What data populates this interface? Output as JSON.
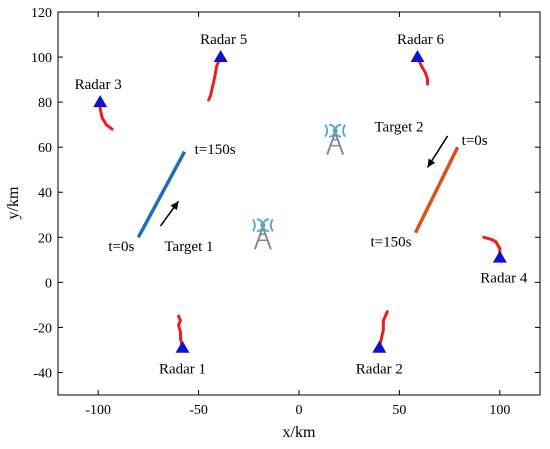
{
  "chart_data": {
    "type": "line",
    "xlabel": "x/km",
    "ylabel": "y/km",
    "xlim": [
      -120,
      120
    ],
    "ylim": [
      -50,
      120
    ],
    "xticks": [
      -100,
      -50,
      0,
      50,
      100
    ],
    "yticks": [
      -40,
      -20,
      0,
      20,
      40,
      60,
      80,
      100,
      120
    ],
    "grid": false,
    "colors": {
      "target1": "#1f6fb5",
      "target2": "#d95319",
      "radar_marker": "#1010d0",
      "radar_track": "#ee1c1c",
      "tower_icon": "#888888",
      "tower_waves": "#4aa8d8"
    },
    "targets": [
      {
        "label": "Target 1",
        "start_label": "t=0s",
        "end_label": "t=150s",
        "x": [
          -80,
          -57
        ],
        "y": [
          20,
          58
        ]
      },
      {
        "label": "Target 2",
        "start_label": "t=0s",
        "end_label": "t=150s",
        "x": [
          79,
          58
        ],
        "y": [
          60,
          22
        ]
      }
    ],
    "radars": [
      {
        "name": "Radar 1",
        "x": -58,
        "y": -29,
        "track": [
          [
            -58,
            -29
          ],
          [
            -59,
            -25
          ],
          [
            -59,
            -22
          ],
          [
            -60,
            -19
          ],
          [
            -59,
            -17
          ],
          [
            -60,
            -15
          ]
        ]
      },
      {
        "name": "Radar 2",
        "x": 40,
        "y": -29,
        "track": [
          [
            40,
            -29
          ],
          [
            41,
            -25
          ],
          [
            42,
            -21
          ],
          [
            42,
            -17
          ],
          [
            43,
            -15
          ],
          [
            44,
            -13
          ]
        ]
      },
      {
        "name": "Radar 3",
        "x": -99,
        "y": 80,
        "track": [
          [
            -99,
            80
          ],
          [
            -99,
            77
          ],
          [
            -98,
            73
          ],
          [
            -96,
            70
          ],
          [
            -93,
            68
          ]
        ]
      },
      {
        "name": "Radar 4",
        "x": 100,
        "y": 11,
        "track": [
          [
            100,
            11
          ],
          [
            100,
            15
          ],
          [
            98,
            18
          ],
          [
            96,
            19
          ],
          [
            92,
            20
          ]
        ]
      },
      {
        "name": "Radar 5",
        "x": -39,
        "y": 100,
        "track": [
          [
            -39,
            100
          ],
          [
            -41,
            96
          ],
          [
            -42,
            91
          ],
          [
            -43,
            87
          ],
          [
            -44,
            83
          ],
          [
            -45,
            81
          ]
        ]
      },
      {
        "name": "Radar 6",
        "x": 59,
        "y": 100,
        "track": [
          [
            59,
            100
          ],
          [
            61,
            96
          ],
          [
            63,
            93
          ],
          [
            64,
            90
          ],
          [
            64,
            88
          ]
        ]
      }
    ],
    "towers": [
      {
        "x": 18,
        "y": 62
      },
      {
        "x": -18,
        "y": 20
      }
    ]
  }
}
